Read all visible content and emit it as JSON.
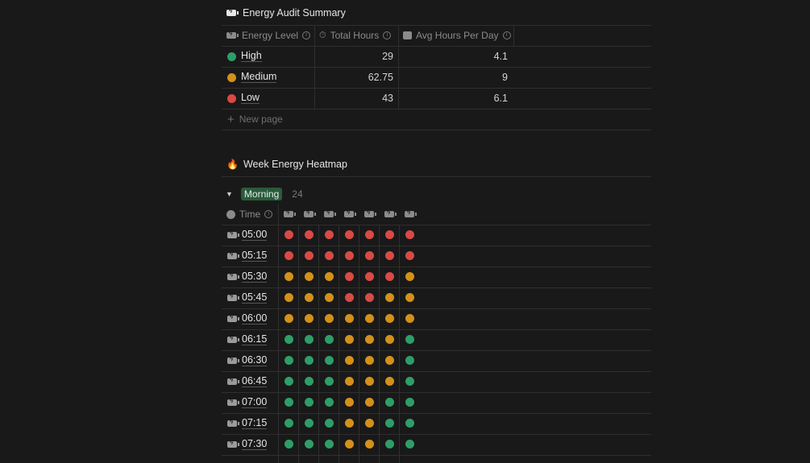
{
  "summary": {
    "title": "Energy Audit Summary",
    "columns": [
      "Energy Level",
      "Total Hours",
      "Avg Hours Per Day"
    ],
    "rows": [
      {
        "level": "High",
        "total": "29",
        "avg": "4.1",
        "color": "#2e9e68"
      },
      {
        "level": "Medium",
        "total": "62.75",
        "avg": "9",
        "color": "#d3911a"
      },
      {
        "level": "Low",
        "total": "43",
        "avg": "6.1",
        "color": "#d84a45"
      }
    ],
    "new_page": "New page"
  },
  "heatmap": {
    "title": "Week Energy Heatmap",
    "group": {
      "label": "Morning",
      "count": "24",
      "color": "#2b5a3c"
    },
    "time_header": "Time",
    "colors": {
      "H": "#2e9e68",
      "M": "#d3911a",
      "L": "#d84a45"
    },
    "rows": [
      {
        "time": "05:00",
        "levels": "LLLLLLL"
      },
      {
        "time": "05:15",
        "levels": "LLLLLLL"
      },
      {
        "time": "05:30",
        "levels": "MMMLLLM"
      },
      {
        "time": "05:45",
        "levels": "MMMLLMM"
      },
      {
        "time": "06:00",
        "levels": "MMMMMMM"
      },
      {
        "time": "06:15",
        "levels": "HHHMMMH"
      },
      {
        "time": "06:30",
        "levels": "HHHMMMH"
      },
      {
        "time": "06:45",
        "levels": "HHHMMMH"
      },
      {
        "time": "07:00",
        "levels": "HHHMMHH"
      },
      {
        "time": "07:15",
        "levels": "HHHMMHH"
      },
      {
        "time": "07:30",
        "levels": "HHHMMHH"
      }
    ]
  }
}
